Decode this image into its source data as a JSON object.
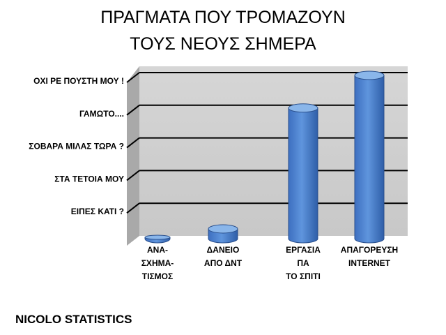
{
  "chart_data": {
    "type": "bar",
    "title_lines": [
      "ΠΡΑΓΜΑΤΑ ΠΟΥ ΤΡΟΜΑΖΟΥΝ",
      "ΤΟΥΣ ΝΕΟΥΣ ΣΗΜΕΡΑ"
    ],
    "y_tick_labels": [
      "ΕΙΠΕΣ ΚΑΤΙ ?",
      "ΣΤΑ ΤΕΤΟΙΑ ΜΟΥ",
      "ΣΟΒΑΡΑ ΜΙΛΑΣ ΤΩΡΑ ?",
      "ΓΑΜΩΤΟ....",
      "ΟΧΙ ΡΕ ΠΟΥΣΤΗ ΜΟΥ !"
    ],
    "categories": [
      [
        "ΑΝΑ-",
        "ΣΧΗΜΑ-",
        "ΤΙΣΜΟΣ"
      ],
      [
        "ΔΑΝΕΙΟ",
        "ΑΠΟ ΔΝΤ"
      ],
      [
        "ΕΡΓΑΣΙΑ",
        "ΠΑ",
        "ΤΟ ΣΠΙΤΙ"
      ],
      [
        "ΑΠΑΓΟΡΕΥΣΗ",
        "INTERNET"
      ]
    ],
    "values": [
      0.02,
      0.3,
      4.0,
      5.0
    ],
    "ylim": [
      0,
      5
    ],
    "grid": true,
    "bar_color": "#4a7fd0",
    "bar_top_color": "#8ab6ea"
  },
  "footer": "NICOLO STATISTICS"
}
